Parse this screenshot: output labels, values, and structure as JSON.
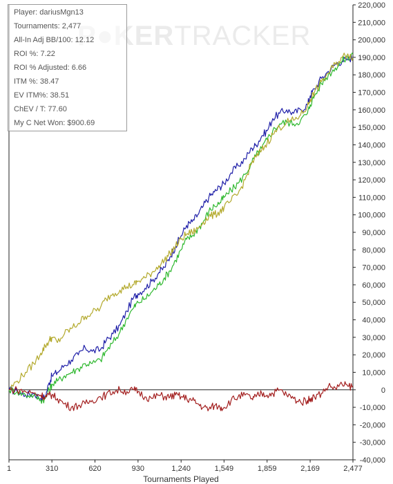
{
  "stats": [
    {
      "label": "Player",
      "value": "dariusMgn13",
      "text": "Player: dariusMgn13"
    },
    {
      "label": "Tournaments",
      "value": "2,477",
      "text": "Tournaments: 2,477"
    },
    {
      "label": "All-In Adj BB/100",
      "value": "12.12",
      "text": "All-In Adj BB/100: 12.12"
    },
    {
      "label": "ROI %",
      "value": "7.22",
      "text": "ROI %: 7.22"
    },
    {
      "label": "ROI % Adjusted",
      "value": "6.66",
      "text": "ROI % Adjusted: 6.66"
    },
    {
      "label": "ITM %",
      "value": "38.47",
      "text": "ITM %: 38.47"
    },
    {
      "label": "EV ITM%",
      "value": "38.51",
      "text": "EV ITM%: 38.51"
    },
    {
      "label": "ChEV / T",
      "value": "77.60",
      "text": "ChEV / T: 77.60"
    },
    {
      "label": "My C Net Won",
      "value": "$900.69",
      "text": "My C Net Won: $900.69"
    }
  ],
  "watermark": {
    "part1": "P",
    "part2": "KER",
    "part3": "TRACKER"
  },
  "chart_data": {
    "type": "line",
    "xlabel": "Tournaments Played",
    "ylabel": "",
    "xlim": [
      1,
      2477
    ],
    "ylim": [
      -40000,
      220000
    ],
    "x_ticks": [
      {
        "value": 1,
        "label": "1"
      },
      {
        "value": 310,
        "label": "310"
      },
      {
        "value": 620,
        "label": "620"
      },
      {
        "value": 930,
        "label": "930"
      },
      {
        "value": 1240,
        "label": "1,240"
      },
      {
        "value": 1549,
        "label": "1,549"
      },
      {
        "value": 1859,
        "label": "1,859"
      },
      {
        "value": 2169,
        "label": "2,169"
      },
      {
        "value": 2477,
        "label": "2,477"
      }
    ],
    "y_ticks": [
      {
        "value": 220000,
        "label": "220,000"
      },
      {
        "value": 210000,
        "label": "210,000"
      },
      {
        "value": 200000,
        "label": "200,000"
      },
      {
        "value": 190000,
        "label": "190,000"
      },
      {
        "value": 180000,
        "label": "180,000"
      },
      {
        "value": 170000,
        "label": "170,000"
      },
      {
        "value": 160000,
        "label": "160,000"
      },
      {
        "value": 150000,
        "label": "150,000"
      },
      {
        "value": 140000,
        "label": "140,000"
      },
      {
        "value": 130000,
        "label": "130,000"
      },
      {
        "value": 120000,
        "label": "120,000"
      },
      {
        "value": 110000,
        "label": "110,000"
      },
      {
        "value": 100000,
        "label": "100,000"
      },
      {
        "value": 90000,
        "label": "90,000"
      },
      {
        "value": 80000,
        "label": "80,000"
      },
      {
        "value": 70000,
        "label": "70,000"
      },
      {
        "value": 60000,
        "label": "60,000"
      },
      {
        "value": 50000,
        "label": "50,000"
      },
      {
        "value": 40000,
        "label": "40,000"
      },
      {
        "value": 30000,
        "label": "30,000"
      },
      {
        "value": 20000,
        "label": "20,000"
      },
      {
        "value": 10000,
        "label": "10,000"
      },
      {
        "value": 0,
        "label": "0"
      },
      {
        "value": -10000,
        "label": "-10,000"
      },
      {
        "value": -20000,
        "label": "-20,000"
      },
      {
        "value": -30000,
        "label": "-30,000"
      },
      {
        "value": -40000,
        "label": "-40,000"
      }
    ],
    "zero_line": true,
    "grid": false,
    "legend": "none",
    "series": [
      {
        "key": "blue",
        "color": "#1f1fa8",
        "x": [
          1,
          60,
          120,
          180,
          230,
          262,
          290,
          310,
          350,
          400,
          450,
          500,
          550,
          600,
          660,
          700,
          750,
          800,
          850,
          900,
          930,
          980,
          1030,
          1080,
          1120,
          1160,
          1200,
          1240,
          1280,
          1320,
          1360,
          1400,
          1440,
          1480,
          1520,
          1549,
          1600,
          1650,
          1700,
          1750,
          1780,
          1820,
          1859,
          1900,
          1950,
          2000,
          2050,
          2100,
          2150,
          2169,
          2200,
          2250,
          2300,
          2350,
          2400,
          2440,
          2477
        ],
        "y": [
          0,
          -1000,
          -3000,
          -2000,
          -5000,
          -4000,
          4000,
          8000,
          10000,
          14000,
          17000,
          20000,
          24000,
          22000,
          23000,
          28000,
          32000,
          37000,
          45000,
          53000,
          55000,
          58000,
          62000,
          67000,
          70000,
          76000,
          82000,
          88000,
          94000,
          96000,
          100000,
          105000,
          110000,
          113000,
          116000,
          118000,
          124000,
          128000,
          132000,
          138000,
          140000,
          145000,
          148000,
          155000,
          158000,
          160000,
          158000,
          160000,
          163000,
          168000,
          172000,
          178000,
          182000,
          186000,
          188000,
          189000,
          190000
        ]
      },
      {
        "key": "green",
        "color": "#2eb82e",
        "x": [
          1,
          60,
          120,
          180,
          230,
          262,
          290,
          310,
          350,
          400,
          450,
          500,
          550,
          600,
          660,
          700,
          750,
          800,
          850,
          900,
          930,
          980,
          1030,
          1080,
          1120,
          1160,
          1200,
          1240,
          1280,
          1320,
          1360,
          1400,
          1440,
          1480,
          1520,
          1549,
          1600,
          1650,
          1700,
          1750,
          1780,
          1820,
          1859,
          1900,
          1950,
          2000,
          2050,
          2100,
          2150,
          2169,
          2200,
          2250,
          2300,
          2350,
          2400,
          2440,
          2477
        ],
        "y": [
          0,
          -1000,
          -3000,
          -3000,
          -6000,
          -5000,
          0,
          3000,
          5000,
          8000,
          10000,
          12000,
          15000,
          15000,
          17000,
          22000,
          27000,
          33000,
          41000,
          47000,
          50000,
          52000,
          56000,
          60000,
          64000,
          68000,
          74000,
          80000,
          86000,
          88000,
          92000,
          96000,
          102000,
          105000,
          107000,
          110000,
          114000,
          118000,
          123000,
          130000,
          134000,
          138000,
          143000,
          148000,
          152000,
          153000,
          152000,
          154000,
          158000,
          163000,
          168000,
          175000,
          180000,
          184000,
          188000,
          190000,
          192000
        ]
      },
      {
        "key": "olive",
        "color": "#b3a92c",
        "x": [
          1,
          60,
          120,
          180,
          230,
          262,
          290,
          310,
          350,
          400,
          450,
          500,
          550,
          600,
          660,
          700,
          750,
          800,
          850,
          900,
          930,
          980,
          1030,
          1080,
          1120,
          1160,
          1200,
          1240,
          1280,
          1320,
          1360,
          1400,
          1440,
          1480,
          1520,
          1549,
          1600,
          1650,
          1700,
          1750,
          1780,
          1820,
          1859,
          1900,
          1950,
          2000,
          2050,
          2100,
          2150,
          2169,
          2200,
          2250,
          2300,
          2350,
          2400,
          2440,
          2477
        ],
        "y": [
          0,
          5000,
          10000,
          15000,
          21000,
          25000,
          28000,
          30000,
          27000,
          32000,
          35000,
          38000,
          42000,
          44000,
          47000,
          52000,
          55000,
          57000,
          59000,
          60000,
          62000,
          64000,
          67000,
          71000,
          74000,
          78000,
          82000,
          86000,
          89000,
          90000,
          92000,
          96000,
          99000,
          100000,
          102000,
          104000,
          108000,
          112000,
          120000,
          130000,
          133000,
          137000,
          141000,
          146000,
          150000,
          153000,
          154000,
          157000,
          162000,
          166000,
          170000,
          176000,
          181000,
          186000,
          190000,
          192000,
          190000
        ]
      },
      {
        "key": "red",
        "color": "#a31f1f",
        "x": [
          1,
          60,
          120,
          180,
          230,
          262,
          290,
          310,
          350,
          400,
          450,
          500,
          550,
          600,
          660,
          700,
          750,
          800,
          850,
          900,
          930,
          980,
          1030,
          1080,
          1120,
          1160,
          1200,
          1240,
          1280,
          1320,
          1360,
          1400,
          1440,
          1480,
          1520,
          1549,
          1600,
          1650,
          1700,
          1750,
          1780,
          1820,
          1859,
          1900,
          1950,
          2000,
          2050,
          2100,
          2150,
          2169,
          2200,
          2250,
          2300,
          2350,
          2400,
          2440,
          2477
        ],
        "y": [
          0,
          0,
          -1000,
          -2000,
          -3000,
          -4000,
          -3000,
          -3000,
          -5000,
          -8000,
          -10000,
          -9000,
          -8000,
          -6000,
          -4000,
          -3000,
          -1000,
          0,
          -1000,
          0,
          -1000,
          -4000,
          -5000,
          -3000,
          -4000,
          -4000,
          -3000,
          -4000,
          -5000,
          -6000,
          -8000,
          -10000,
          -11000,
          -9000,
          -10000,
          -10000,
          -6000,
          -4000,
          -3000,
          -5000,
          -4000,
          -2000,
          -3000,
          -2000,
          0,
          -3000,
          -5000,
          -7000,
          -6000,
          -5000,
          -4000,
          -2000,
          2000,
          1000,
          3000,
          2000,
          2000
        ]
      }
    ]
  }
}
